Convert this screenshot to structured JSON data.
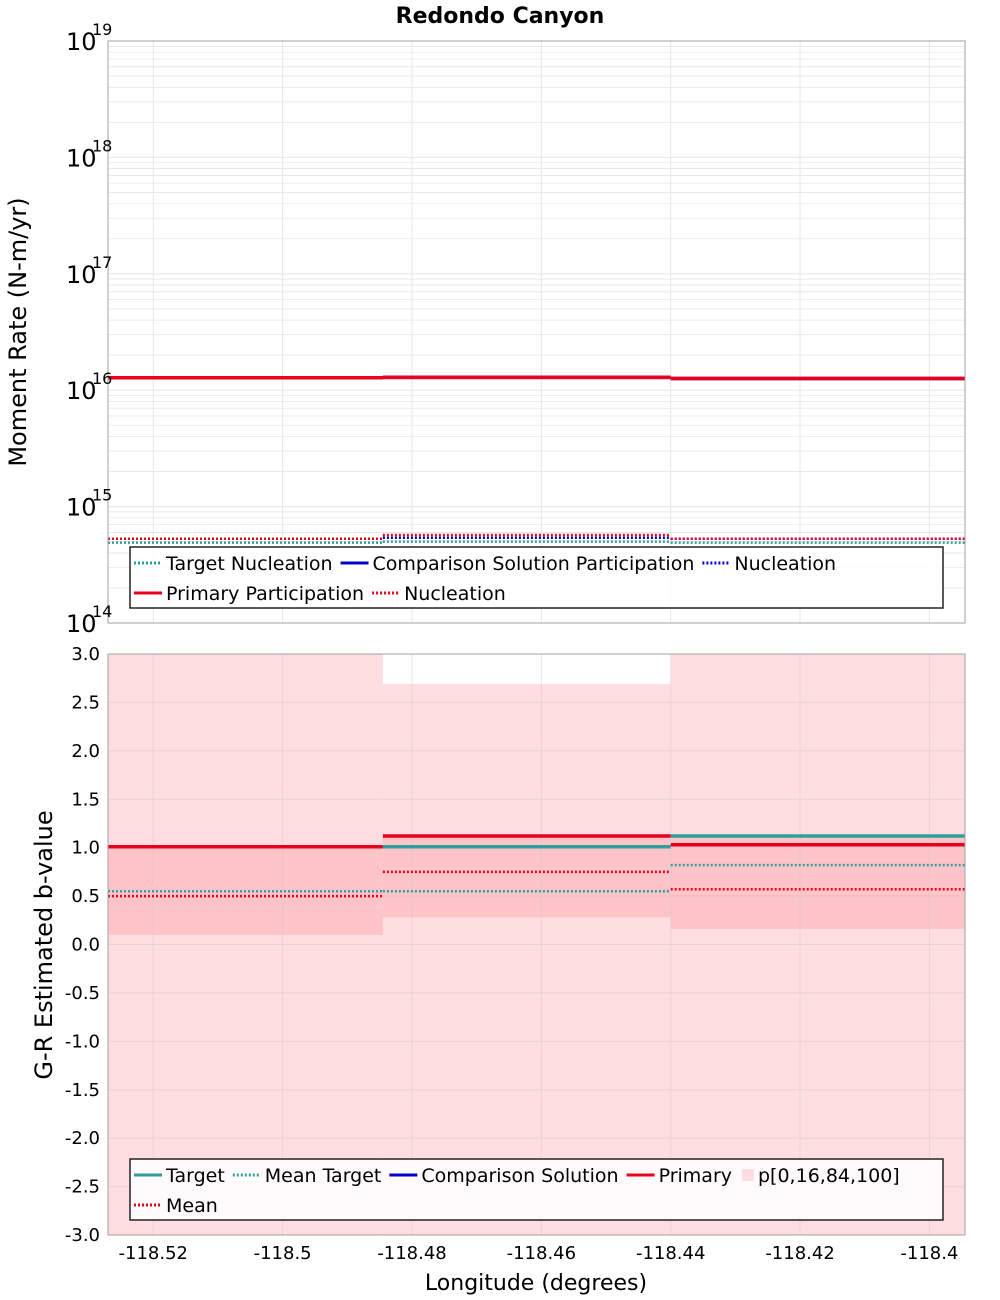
{
  "title": "Redondo Canyon",
  "colors": {
    "target": "#2e9f9f",
    "comparison": "#0000c8",
    "primary": "#e8001e",
    "band_outer": "#ffdde0",
    "band_inner": "#ffc4c8",
    "grid": "#e6e6e6"
  },
  "chart_data": [
    {
      "type": "line",
      "ylabel": "Moment Rate (N-m/yr)",
      "yscale": "log",
      "ylim": [
        100000000000000.0,
        1e+19
      ],
      "xlim": [
        -118.527,
        -118.3945
      ],
      "ytick_base": "10",
      "yticks": [
        {
          "exp": "14",
          "value": 100000000000000.0
        },
        {
          "exp": "15",
          "value": 1000000000000000.0
        },
        {
          "exp": "16",
          "value": 1e+16
        },
        {
          "exp": "17",
          "value": 1e+17
        },
        {
          "exp": "18",
          "value": 1e+18
        },
        {
          "exp": "19",
          "value": 1e+19
        }
      ],
      "grid": true,
      "legend_position": "bottom",
      "series": [
        {
          "name": "Target Nucleation",
          "style": "dotted",
          "color": "#2e9f9f",
          "segments": [
            [
              -118.527,
              -118.4845,
              490000000000000.0
            ],
            [
              -118.4845,
              -118.44,
              500000000000000.0
            ],
            [
              -118.44,
              -118.3945,
              490000000000000.0
            ]
          ]
        },
        {
          "name": "Comparison Solution Participation",
          "style": "solid",
          "color": "#0000c8",
          "segments": [
            [
              -118.527,
              -118.4845,
              1.28e+16
            ],
            [
              -118.4845,
              -118.44,
              1.29e+16
            ],
            [
              -118.44,
              -118.3945,
              1.26e+16
            ]
          ]
        },
        {
          "name": "Nucleation",
          "style": "dotted",
          "color": "#0000c8",
          "segments": [
            [
              -118.527,
              -118.4845,
              530000000000000.0
            ],
            [
              -118.4845,
              -118.44,
              540000000000000.0
            ],
            [
              -118.44,
              -118.3945,
              530000000000000.0
            ]
          ]
        },
        {
          "name": "Primary Participation",
          "style": "solid",
          "color": "#e8001e",
          "segments": [
            [
              -118.527,
              -118.4845,
              1.28e+16
            ],
            [
              -118.4845,
              -118.44,
              1.29e+16
            ],
            [
              -118.44,
              -118.3945,
              1.26e+16
            ]
          ]
        },
        {
          "name": "Nucleation",
          "style": "dotted",
          "color": "#e8001e",
          "segments": [
            [
              -118.527,
              -118.4845,
              530000000000000.0
            ],
            [
              -118.4845,
              -118.44,
              570000000000000.0
            ],
            [
              -118.44,
              -118.3945,
              530000000000000.0
            ]
          ]
        }
      ]
    },
    {
      "type": "line",
      "xlabel": "Longitude (degrees)",
      "ylabel": "G-R Estimated b-value",
      "ylim": [
        -3.0,
        3.0
      ],
      "xlim": [
        -118.527,
        -118.3945
      ],
      "xticks": [
        "-118.52",
        "-118.5",
        "-118.48",
        "-118.46",
        "-118.44",
        "-118.42",
        "-118.4"
      ],
      "yticks": [
        "-3.0",
        "-2.5",
        "-2.0",
        "-1.5",
        "-1.0",
        "-0.5",
        "0.0",
        "0.5",
        "1.0",
        "1.5",
        "2.0",
        "2.5",
        "3.0"
      ],
      "grid": true,
      "legend_position": "bottom",
      "bands": {
        "name": "p[0,16,84,100]",
        "outer": [
          [
            -118.527,
            -118.4845,
            -3.0,
            3.0
          ],
          [
            -118.4845,
            -118.44,
            -3.0,
            2.69
          ],
          [
            -118.44,
            -118.3945,
            -3.0,
            3.0
          ]
        ],
        "inner": [
          [
            -118.527,
            -118.4845,
            0.1,
            1.0
          ],
          [
            -118.4845,
            -118.44,
            0.28,
            1.12
          ],
          [
            -118.44,
            -118.3945,
            0.16,
            1.12
          ]
        ]
      },
      "series": [
        {
          "name": "Target",
          "style": "solid",
          "color": "#2e9f9f",
          "segments": [
            [
              -118.527,
              -118.4845,
              1.01
            ],
            [
              -118.4845,
              -118.44,
              1.01
            ],
            [
              -118.44,
              -118.3945,
              1.12
            ]
          ]
        },
        {
          "name": "Mean Target",
          "style": "dotted",
          "color": "#2e9f9f",
          "segments": [
            [
              -118.527,
              -118.4845,
              0.55
            ],
            [
              -118.4845,
              -118.44,
              0.55
            ],
            [
              -118.44,
              -118.3945,
              0.82
            ]
          ]
        },
        {
          "name": "Comparison Solution",
          "style": "solid",
          "color": "#0000c8",
          "segments": []
        },
        {
          "name": "Primary",
          "style": "solid",
          "color": "#e8001e",
          "segments": [
            [
              -118.527,
              -118.4845,
              1.01
            ],
            [
              -118.4845,
              -118.44,
              1.12
            ],
            [
              -118.44,
              -118.3945,
              1.03
            ]
          ]
        },
        {
          "name": "Mean",
          "style": "dotted",
          "color": "#e8001e",
          "segments": [
            [
              -118.527,
              -118.4845,
              0.5
            ],
            [
              -118.4845,
              -118.44,
              0.75
            ],
            [
              -118.44,
              -118.3945,
              0.57
            ]
          ]
        }
      ]
    }
  ]
}
